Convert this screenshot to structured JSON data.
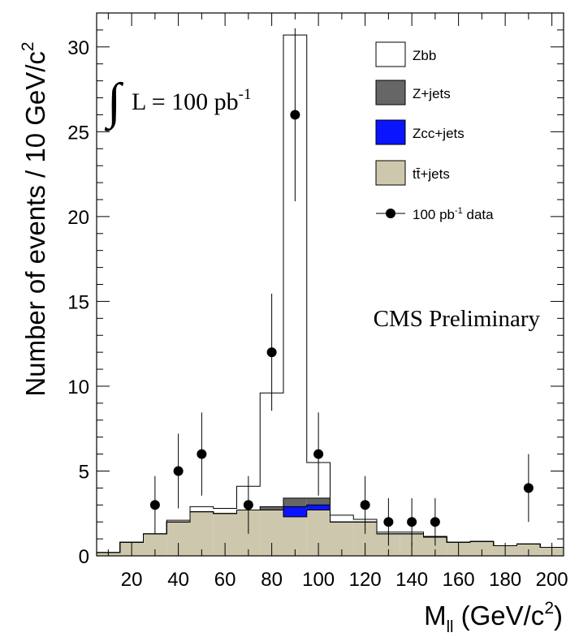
{
  "chart_data": {
    "type": "bar",
    "ylabel_main": "Number of events / 10 GeV/c",
    "ylabel_sup": "2",
    "xlabel_main": "M",
    "xlabel_sub": "ll",
    "xlabel_unit": " (GeV/c",
    "xlabel_sup": "2",
    "xlabel_close": ")",
    "xlim": [
      5,
      205
    ],
    "ylim": [
      0,
      32
    ],
    "x_ticks": [
      20,
      40,
      60,
      80,
      100,
      120,
      140,
      160,
      180,
      200
    ],
    "y_ticks": [
      0,
      5,
      10,
      15,
      20,
      25,
      30
    ],
    "bin_edges": [
      5,
      15,
      25,
      35,
      45,
      55,
      65,
      75,
      85,
      95,
      105,
      115,
      125,
      135,
      145,
      155,
      165,
      175,
      185,
      195,
      205
    ],
    "series": [
      {
        "name": "tt+jets",
        "color": "#cdc7ad",
        "values": [
          0.2,
          0.8,
          1.3,
          2.0,
          2.6,
          2.5,
          2.7,
          2.7,
          2.3,
          2.7,
          2.0,
          2.0,
          1.3,
          1.3,
          1.1,
          0.8,
          0.85,
          0.6,
          0.7,
          0.5
        ]
      },
      {
        "name": "Zcc+jets",
        "color": "#0a14ff",
        "values": [
          0,
          0,
          0,
          0,
          0,
          0,
          0,
          0,
          0.6,
          0.3,
          0,
          0,
          0,
          0,
          0,
          0,
          0,
          0,
          0,
          0
        ]
      },
      {
        "name": "Z+jets",
        "color": "#666666",
        "values": [
          0,
          0,
          0,
          0,
          0,
          0,
          0,
          0.2,
          0.5,
          0.4,
          0,
          0,
          0,
          0,
          0,
          0,
          0,
          0,
          0,
          0
        ]
      },
      {
        "name": "Zbb",
        "color": "#ffffff",
        "values": [
          0,
          0,
          0,
          0.1,
          0.3,
          0.3,
          1.4,
          6.7,
          27.3,
          2.1,
          0.4,
          0.15,
          0.1,
          0.1,
          0.05,
          0,
          0,
          0,
          0,
          0
        ]
      }
    ],
    "data_points": {
      "name": "100 pb-1 data",
      "x": [
        30,
        40,
        50,
        70,
        80,
        90,
        100,
        120,
        130,
        140,
        150,
        190
      ],
      "y": [
        3,
        5,
        6,
        3,
        12,
        26,
        6,
        3,
        2,
        2,
        2,
        4
      ],
      "err": [
        1.7,
        2.2,
        2.45,
        1.7,
        3.45,
        5.1,
        2.45,
        1.7,
        1.4,
        1.4,
        1.4,
        2.0
      ]
    },
    "legend": {
      "placement": "top-right",
      "entries": [
        {
          "label": "Zbb",
          "color": "#ffffff",
          "kind": "box"
        },
        {
          "label": "Z+jets",
          "color": "#666666",
          "kind": "box"
        },
        {
          "label": "Zcc+jets",
          "color": "#0a14ff",
          "kind": "box"
        },
        {
          "label": "tt̄+jets",
          "color": "#cdc7ad",
          "kind": "box"
        },
        {
          "label_main": "100 pb",
          "label_sup": "-1",
          "label_tail": " data",
          "kind": "marker"
        }
      ]
    },
    "annotations": {
      "lumi_integral": "∫",
      "lumi_text": "L = 100 pb",
      "lumi_sup": "-1",
      "preliminary": "CMS Preliminary"
    }
  }
}
